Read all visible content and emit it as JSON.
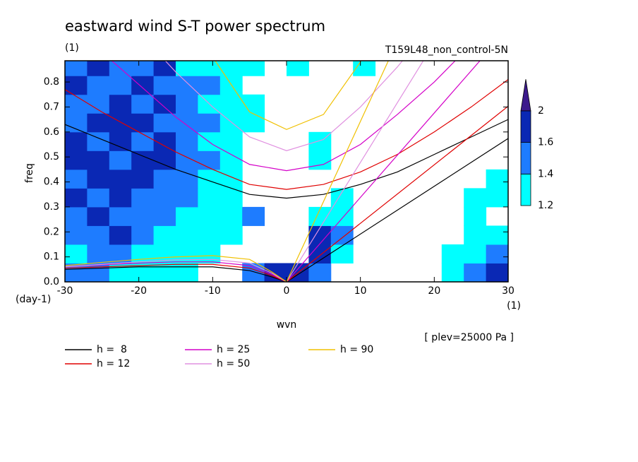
{
  "chart_data": {
    "type": "contour-lines",
    "title": "eastward wind S-T power spectrum",
    "subtitle": "(1)",
    "run_label": "T159L48_non_control-5N",
    "x_label": "wvn",
    "x_unit": "(1)",
    "y_label": "freq",
    "y_unit": "(day-1)",
    "level_note": "[ plev=25000 Pa ]",
    "xlim": [
      -30,
      30
    ],
    "ylim": [
      0,
      0.885
    ],
    "xticks": [
      -30,
      -20,
      -10,
      0,
      10,
      20,
      30
    ],
    "yticks": [
      {
        "value": 0,
        "label": "0.0"
      },
      0.1,
      0.2,
      0.3,
      0.4,
      0.5,
      0.6,
      0.7,
      0.8
    ],
    "colorbar": {
      "levels": [
        1.2,
        1.4,
        1.6,
        2
      ],
      "colors": [
        "#00ffff",
        "#1e7cff",
        "#0a28b4",
        "#3c1a8c"
      ]
    },
    "field": {
      "x": [
        -28.5,
        -25.5,
        -22.5,
        -19.5,
        -16.5,
        -13.5,
        -10.5,
        -7.5,
        -4.5,
        -1.5,
        1.5,
        4.5,
        7.5,
        10.5,
        13.5,
        16.5,
        19.5,
        22.5,
        25.5,
        28.5
      ],
      "y": [
        0.0375,
        0.1125,
        0.1875,
        0.2625,
        0.3375,
        0.4125,
        0.4875,
        0.5625,
        0.6375,
        0.7125,
        0.7875,
        0.8625
      ],
      "z": [
        [
          1.5,
          1.5,
          1.3,
          1.3,
          1.3,
          1.3,
          null,
          null,
          1.5,
          1.8,
          1.8,
          1.5,
          null,
          null,
          null,
          null,
          null,
          1.3,
          1.5,
          1.8
        ],
        [
          1.3,
          1.5,
          1.5,
          1.3,
          1.3,
          1.3,
          1.3,
          null,
          null,
          null,
          null,
          1.8,
          1.3,
          null,
          null,
          null,
          null,
          1.3,
          1.3,
          1.5
        ],
        [
          1.5,
          1.5,
          1.8,
          1.5,
          1.3,
          1.3,
          1.3,
          1.3,
          null,
          null,
          null,
          1.8,
          1.5,
          null,
          null,
          null,
          null,
          null,
          1.3,
          1.3
        ],
        [
          1.5,
          1.8,
          1.5,
          1.5,
          1.5,
          1.3,
          1.3,
          1.3,
          1.5,
          null,
          null,
          1.3,
          1.3,
          null,
          null,
          null,
          null,
          null,
          1.3,
          null
        ],
        [
          1.8,
          1.5,
          1.8,
          1.5,
          1.5,
          1.5,
          1.3,
          1.3,
          null,
          null,
          null,
          null,
          1.3,
          null,
          null,
          null,
          null,
          null,
          1.3,
          1.3
        ],
        [
          1.5,
          1.8,
          1.8,
          1.8,
          1.5,
          1.5,
          1.3,
          1.3,
          null,
          null,
          null,
          null,
          null,
          null,
          null,
          null,
          null,
          null,
          null,
          1.3
        ],
        [
          1.8,
          1.8,
          1.5,
          1.8,
          1.8,
          1.5,
          1.5,
          1.3,
          null,
          null,
          null,
          1.3,
          null,
          null,
          null,
          null,
          null,
          null,
          null,
          null
        ],
        [
          1.8,
          1.5,
          1.8,
          1.5,
          1.8,
          1.5,
          1.3,
          1.3,
          null,
          null,
          null,
          1.3,
          null,
          null,
          null,
          null,
          null,
          null,
          null,
          null
        ],
        [
          1.5,
          1.8,
          1.8,
          1.8,
          1.5,
          1.5,
          1.5,
          1.3,
          1.3,
          null,
          null,
          null,
          null,
          null,
          null,
          null,
          null,
          null,
          null,
          null
        ],
        [
          1.5,
          1.5,
          1.8,
          1.5,
          1.8,
          1.5,
          1.3,
          1.3,
          1.3,
          null,
          null,
          null,
          null,
          null,
          null,
          null,
          null,
          null,
          null,
          null
        ],
        [
          1.8,
          1.5,
          1.5,
          1.8,
          1.5,
          1.5,
          1.5,
          1.3,
          null,
          null,
          null,
          null,
          null,
          null,
          null,
          null,
          null,
          null,
          null,
          null
        ],
        [
          1.5,
          1.8,
          1.5,
          1.5,
          1.8,
          1.3,
          1.3,
          1.3,
          1.3,
          null,
          1.3,
          null,
          null,
          1.3,
          null,
          null,
          null,
          null,
          null,
          null
        ]
      ]
    },
    "series": [
      {
        "name": "h =  8",
        "color": "#000000",
        "curves": [
          {
            "x": [
              -30,
              -25,
              -20,
              -15,
              -10,
              -5,
              0,
              5,
              10,
              15,
              20,
              25,
              30
            ],
            "values": [
              0.63,
              0.57,
              0.51,
              0.45,
              0.4,
              0.35,
              0.335,
              0.35,
              0.39,
              0.44,
              0.51,
              0.58,
              0.65
            ]
          },
          {
            "x": [
              0,
              30
            ],
            "values": [
              0,
              0.574
            ]
          },
          {
            "x": [
              -30,
              -25,
              -20,
              -15,
              -10,
              -5,
              -2,
              0
            ],
            "values": [
              0.05,
              0.055,
              0.06,
              0.06,
              0.06,
              0.045,
              0.02,
              0
            ]
          }
        ]
      },
      {
        "name": "h = 12",
        "color": "#e00000",
        "curves": [
          {
            "x": [
              -30,
              -25,
              -20,
              -15,
              -10,
              -5,
              0,
              5,
              10,
              15,
              20,
              25,
              30
            ],
            "values": [
              0.77,
              0.68,
              0.6,
              0.52,
              0.45,
              0.39,
              0.37,
              0.39,
              0.44,
              0.51,
              0.6,
              0.7,
              0.81
            ]
          },
          {
            "x": [
              0,
              30
            ],
            "values": [
              0,
              0.703
            ]
          },
          {
            "x": [
              -30,
              -25,
              -20,
              -15,
              -10,
              -5,
              -2,
              0
            ],
            "values": [
              0.055,
              0.06,
              0.065,
              0.07,
              0.07,
              0.055,
              0.025,
              0
            ]
          }
        ]
      },
      {
        "name": "h = 25",
        "color": "#d400c8",
        "curves": [
          {
            "x": [
              -30,
              -25,
              -20,
              -15,
              -10,
              -5,
              0,
              5,
              10,
              15,
              20,
              25
            ],
            "values": [
              1.05,
              0.92,
              0.79,
              0.66,
              0.55,
              0.47,
              0.445,
              0.47,
              0.55,
              0.67,
              0.8,
              0.95
            ]
          },
          {
            "x": [
              0,
              30
            ],
            "values": [
              0,
              1.014
            ]
          },
          {
            "x": [
              -30,
              -25,
              -20,
              -15,
              -10,
              -5,
              -2,
              0
            ],
            "values": [
              0.06,
              0.068,
              0.075,
              0.08,
              0.08,
              0.065,
              0.03,
              0
            ]
          }
        ]
      },
      {
        "name": "h = 50",
        "color": "#e090e0",
        "curves": [
          {
            "x": [
              -20,
              -15,
              -10,
              -5,
              0,
              5,
              10,
              15,
              20
            ],
            "values": [
              1.0,
              0.84,
              0.7,
              0.58,
              0.525,
              0.57,
              0.7,
              0.86,
              1.04
            ]
          },
          {
            "x": [
              0,
              30
            ],
            "values": [
              0,
              1.434
            ]
          },
          {
            "x": [
              -30,
              -25,
              -20,
              -15,
              -10,
              -5,
              -2,
              0
            ],
            "values": [
              0.06,
              0.07,
              0.08,
              0.088,
              0.09,
              0.075,
              0.035,
              0
            ]
          }
        ]
      },
      {
        "name": "h = 90",
        "color": "#f0c000",
        "curves": [
          {
            "x": [
              -15,
              -10,
              -5,
              0,
              5,
              10,
              15
            ],
            "values": [
              1.2,
              0.9,
              0.68,
              0.61,
              0.67,
              0.88,
              1.2
            ]
          },
          {
            "x": [
              0,
              30
            ],
            "values": [
              0,
              1.926
            ]
          },
          {
            "x": [
              -30,
              -25,
              -20,
              -15,
              -10,
              -5,
              -2,
              0
            ],
            "values": [
              0.065,
              0.078,
              0.09,
              0.1,
              0.105,
              0.09,
              0.04,
              0
            ]
          }
        ]
      }
    ]
  }
}
